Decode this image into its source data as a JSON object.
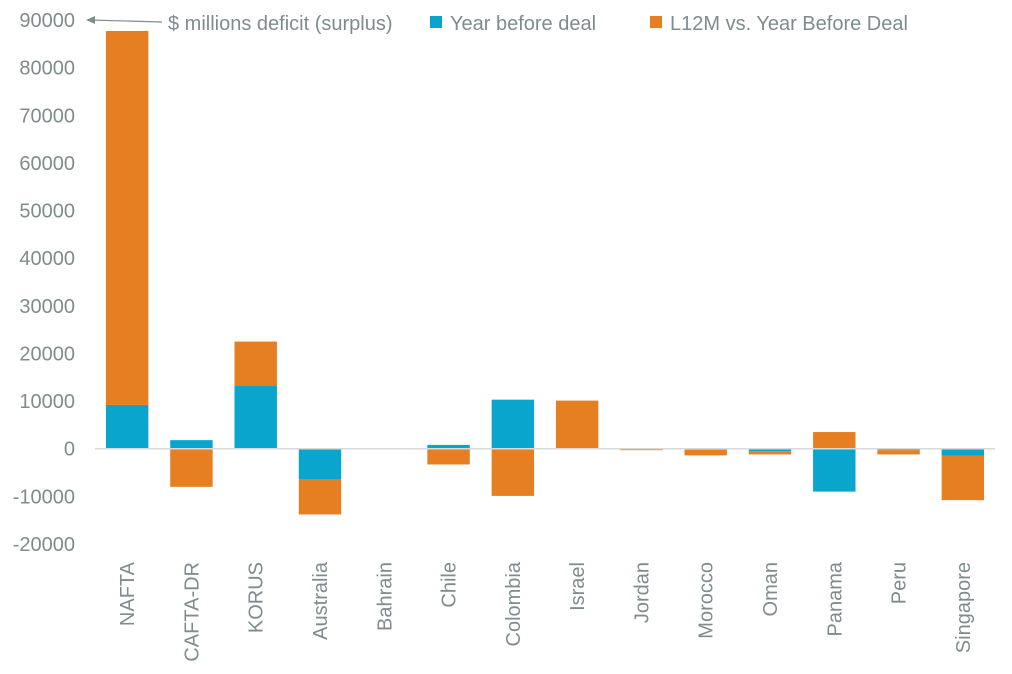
{
  "chart_data": {
    "type": "bar",
    "stacked": true,
    "title": "",
    "annotation": "$ millions deficit (surplus)",
    "xlabel": "",
    "ylabel": "",
    "ylim": [
      -20000,
      90000
    ],
    "yticks": [
      90000,
      80000,
      70000,
      60000,
      50000,
      40000,
      30000,
      20000,
      10000,
      0,
      -10000,
      -20000
    ],
    "grid": false,
    "legend_position": "top",
    "categories": [
      "NAFTA",
      "CAFTA-DR",
      "KORUS",
      "Australia",
      "Bahrain",
      "Chile",
      "Colombia",
      "Israel",
      "Jordan",
      "Morocco",
      "Oman",
      "Panama",
      "Peru",
      "Singapore"
    ],
    "series": [
      {
        "name": "Year before deal",
        "color": "#0aa5cc",
        "values": [
          9200,
          1800,
          13300,
          -6500,
          0,
          800,
          10300,
          0,
          -100,
          -200,
          -500,
          -9000,
          -300,
          -1500
        ]
      },
      {
        "name": "L12M vs. Year Before Deal",
        "color": "#e67e22",
        "values": [
          78500,
          -8000,
          9200,
          -7300,
          0,
          -3300,
          -9900,
          10100,
          -200,
          -1200,
          -700,
          3500,
          -900,
          -9300
        ]
      }
    ]
  }
}
